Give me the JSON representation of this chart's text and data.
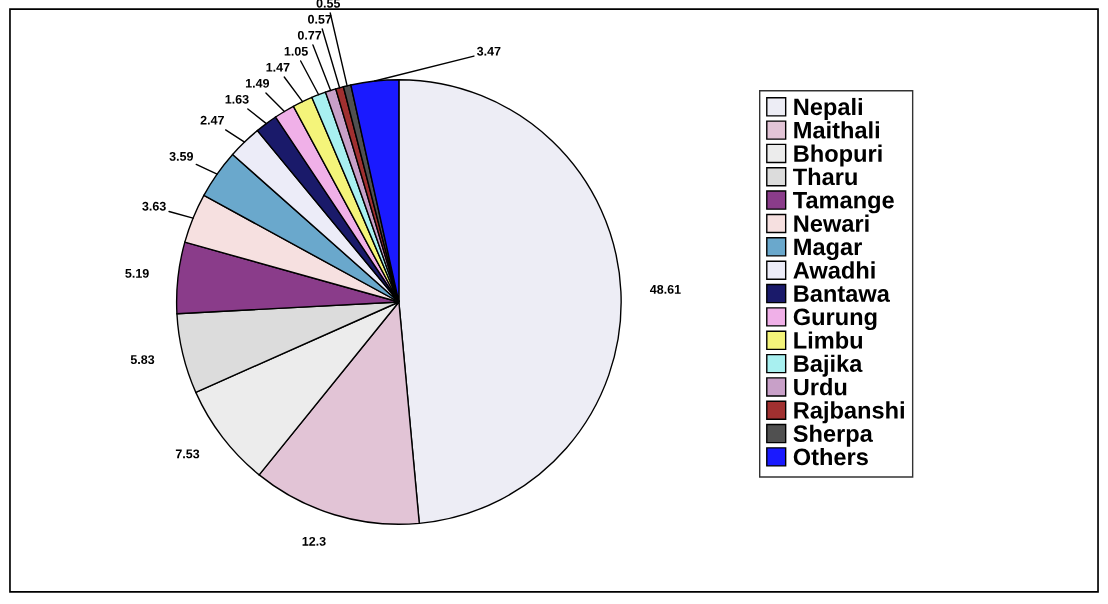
{
  "chart_data": {
    "type": "pie",
    "legend": "right",
    "data_labels": true,
    "categories": [
      "Nepali",
      "Maithali",
      "Bhopuri",
      "Tharu",
      "Tamange",
      "Newari",
      "Magar",
      "Awadhi",
      "Bantawa",
      "Gurung",
      "Limbu",
      "Bajika",
      "Urdu",
      "Rajbanshi",
      "Sherpa",
      "Others"
    ],
    "values": [
      48.61,
      12.3,
      7.53,
      5.83,
      5.19,
      3.63,
      3.59,
      2.47,
      1.63,
      1.49,
      1.47,
      1.05,
      0.77,
      0.57,
      0.55,
      3.47
    ],
    "colors": [
      "#ededf5",
      "#e2c4d6",
      "#ececec",
      "#dcdcdc",
      "#8a3c8a",
      "#f6e0e0",
      "#6aa8cc",
      "#ececf8",
      "#1a1a6a",
      "#f0b0e8",
      "#f4f47a",
      "#a8f0f0",
      "#c8a0c8",
      "#a03030",
      "#505050",
      "#1a1aff"
    ]
  }
}
